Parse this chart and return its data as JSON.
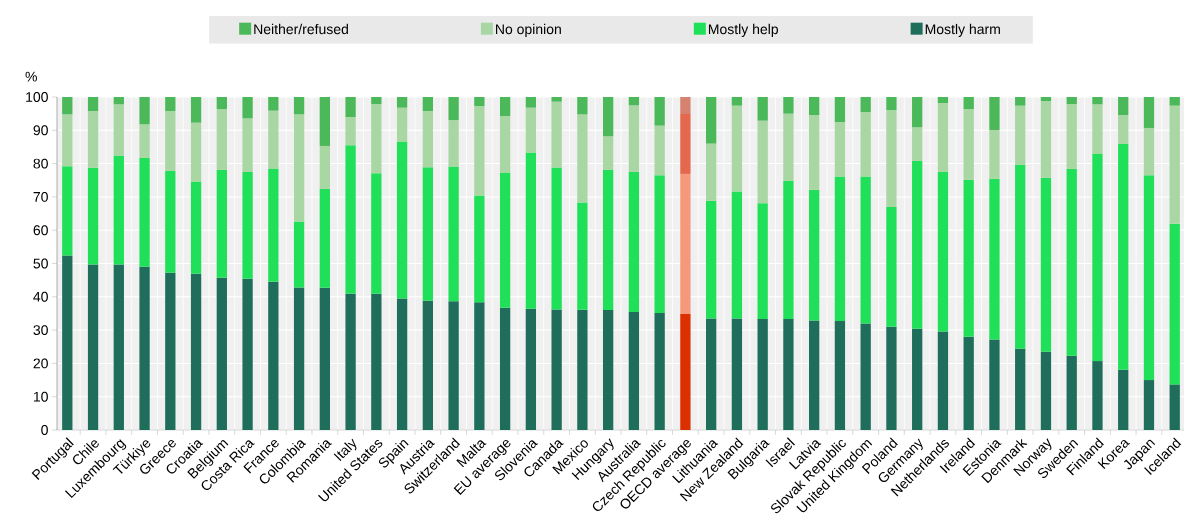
{
  "chart_data": {
    "type": "bar",
    "stacked": true,
    "ylabel": "%",
    "ylim": [
      0,
      100
    ],
    "yticks": [
      0,
      10,
      20,
      30,
      40,
      50,
      60,
      70,
      80,
      90,
      100
    ],
    "grid": true,
    "legend": "top",
    "categories": [
      "Portugal",
      "Chile",
      "Luxembourg",
      "Türkiye",
      "Greece",
      "Croatia",
      "Belgium",
      "Costa Rica",
      "France",
      "Colombia",
      "Romania",
      "Italy",
      "United States",
      "Spain",
      "Austria",
      "Switzerland",
      "Malta",
      "EU average",
      "Slovenia",
      "Canada",
      "Mexico",
      "Hungary",
      "Australia",
      "Czech Republic",
      "OECD average",
      "Lithuania",
      "New Zealand",
      "Bulgaria",
      "Israel",
      "Latvia",
      "Slovak Republic",
      "United Kingdom",
      "Poland",
      "Germany",
      "Netherlands",
      "Ireland",
      "Estonia",
      "Denmark",
      "Norway",
      "Sweden",
      "Finland",
      "Korea",
      "Japan",
      "Iceland"
    ],
    "series": [
      {
        "name": "Mostly harm",
        "color": "#1f6e5c",
        "colors": [
          "#1f6e5c",
          "#1f6e5c",
          "#1f6e5c",
          "#1f6e5c",
          "#1f6e5c",
          "#1f6e5c",
          "#1f6e5c",
          "#1f6e5c",
          "#1f6e5c",
          "#1f6e5c",
          "#1f6e5c",
          "#1f6e5c",
          "#1f6e5c",
          "#1f6e5c",
          "#1f6e5c",
          "#1f6e5c",
          "#1f6e5c",
          "#1f6e5c",
          "#1f6e5c",
          "#1f6e5c",
          "#1f6e5c",
          "#1f6e5c",
          "#1f6e5c",
          "#1f6e5c",
          "#dd3000",
          "#1f6e5c",
          "#1f6e5c",
          "#1f6e5c",
          "#1f6e5c",
          "#1f6e5c",
          "#1f6e5c",
          "#1f6e5c",
          "#1f6e5c",
          "#1f6e5c",
          "#1f6e5c",
          "#1f6e5c",
          "#1f6e5c",
          "#1f6e5c",
          "#1f6e5c",
          "#1f6e5c",
          "#1f6e5c",
          "#1f6e5c",
          "#1f6e5c",
          "#1f6e5c"
        ],
        "values": [
          52.4,
          49.7,
          49.7,
          49.0,
          47.2,
          46.9,
          45.7,
          45.4,
          44.5,
          42.8,
          42.7,
          40.9,
          40.9,
          39.5,
          38.8,
          38.7,
          38.4,
          36.7,
          36.4,
          36.2,
          36.1,
          36.0,
          35.4,
          35.1,
          34.8,
          33.5,
          33.5,
          33.3,
          33.3,
          32.9,
          32.7,
          32.0,
          31.0,
          30.4,
          29.6,
          28.0,
          27.2,
          24.4,
          23.5,
          22.3,
          20.7,
          18.1,
          15.0,
          13.7
        ]
      },
      {
        "name": "Mostly help",
        "color": "#20e05a",
        "colors": [
          "#20e05a",
          "#20e05a",
          "#20e05a",
          "#20e05a",
          "#20e05a",
          "#20e05a",
          "#20e05a",
          "#20e05a",
          "#20e05a",
          "#20e05a",
          "#20e05a",
          "#20e05a",
          "#20e05a",
          "#20e05a",
          "#20e05a",
          "#20e05a",
          "#20e05a",
          "#20e05a",
          "#20e05a",
          "#20e05a",
          "#20e05a",
          "#20e05a",
          "#20e05a",
          "#20e05a",
          "#f5997c",
          "#20e05a",
          "#20e05a",
          "#20e05a",
          "#20e05a",
          "#20e05a",
          "#20e05a",
          "#20e05a",
          "#20e05a",
          "#20e05a",
          "#20e05a",
          "#20e05a",
          "#20e05a",
          "#20e05a",
          "#20e05a",
          "#20e05a",
          "#20e05a",
          "#20e05a",
          "#20e05a",
          "#20e05a"
        ],
        "values": [
          26.8,
          29.0,
          32.7,
          32.7,
          30.6,
          27.7,
          32.4,
          32.1,
          34.0,
          19.8,
          29.7,
          44.6,
          36.2,
          47.1,
          40.1,
          40.4,
          32.0,
          40.6,
          46.9,
          42.6,
          32.2,
          42.1,
          42.1,
          41.4,
          42.1,
          35.3,
          38.1,
          34.8,
          41.5,
          39.2,
          43.4,
          44.1,
          36.0,
          50.4,
          47.9,
          47.1,
          48.2,
          55.2,
          52.2,
          56.1,
          62.3,
          67.8,
          61.5,
          48.2
        ]
      },
      {
        "name": "No opinion",
        "color": "#a8d7a4",
        "colors": [
          "#a8d7a4",
          "#a8d7a4",
          "#a8d7a4",
          "#a8d7a4",
          "#a8d7a4",
          "#a8d7a4",
          "#a8d7a4",
          "#a8d7a4",
          "#a8d7a4",
          "#a8d7a4",
          "#a8d7a4",
          "#a8d7a4",
          "#a8d7a4",
          "#a8d7a4",
          "#a8d7a4",
          "#a8d7a4",
          "#a8d7a4",
          "#a8d7a4",
          "#a8d7a4",
          "#a8d7a4",
          "#a8d7a4",
          "#a8d7a4",
          "#a8d7a4",
          "#a8d7a4",
          "#e4684e",
          "#a8d7a4",
          "#a8d7a4",
          "#a8d7a4",
          "#a8d7a4",
          "#a8d7a4",
          "#a8d7a4",
          "#a8d7a4",
          "#a8d7a4",
          "#a8d7a4",
          "#a8d7a4",
          "#a8d7a4",
          "#a8d7a4",
          "#a8d7a4",
          "#a8d7a4",
          "#a8d7a4",
          "#a8d7a4",
          "#a8d7a4",
          "#a8d7a4",
          "#a8d7a4"
        ],
        "values": [
          15.6,
          17.1,
          15.4,
          10.1,
          18.0,
          17.7,
          18.3,
          16.1,
          17.4,
          32.2,
          12.9,
          8.5,
          20.8,
          10.2,
          16.9,
          14.0,
          26.9,
          17.0,
          13.5,
          19.8,
          26.5,
          10.1,
          20.0,
          14.9,
          18.0,
          17.2,
          25.8,
          24.8,
          20.2,
          22.5,
          16.4,
          19.4,
          29.1,
          10.1,
          20.7,
          21.3,
          14.7,
          17.8,
          23.1,
          19.5,
          14.8,
          8.7,
          14.2,
          35.5
        ]
      },
      {
        "name": "Neither/refused",
        "color": "#4bb85a",
        "colors": [
          "#4bb85a",
          "#4bb85a",
          "#4bb85a",
          "#4bb85a",
          "#4bb85a",
          "#4bb85a",
          "#4bb85a",
          "#4bb85a",
          "#4bb85a",
          "#4bb85a",
          "#4bb85a",
          "#4bb85a",
          "#4bb85a",
          "#4bb85a",
          "#4bb85a",
          "#4bb85a",
          "#4bb85a",
          "#4bb85a",
          "#4bb85a",
          "#4bb85a",
          "#4bb85a",
          "#4bb85a",
          "#4bb85a",
          "#4bb85a",
          "#d6826f",
          "#4bb85a",
          "#4bb85a",
          "#4bb85a",
          "#4bb85a",
          "#4bb85a",
          "#4bb85a",
          "#4bb85a",
          "#4bb85a",
          "#4bb85a",
          "#4bb85a",
          "#4bb85a",
          "#4bb85a",
          "#4bb85a",
          "#4bb85a",
          "#4bb85a",
          "#4bb85a",
          "#4bb85a",
          "#4bb85a",
          "#4bb85a"
        ],
        "values": [
          5.2,
          4.2,
          2.2,
          8.2,
          4.2,
          7.7,
          3.6,
          6.4,
          4.1,
          5.2,
          14.7,
          6.0,
          2.1,
          3.2,
          4.2,
          6.9,
          2.7,
          5.7,
          3.2,
          1.4,
          5.2,
          11.8,
          2.5,
          8.6,
          5.1,
          14.0,
          2.6,
          7.1,
          5.0,
          5.4,
          7.5,
          4.5,
          3.9,
          9.1,
          1.8,
          3.6,
          9.9,
          2.6,
          1.2,
          2.1,
          2.2,
          5.4,
          9.3,
          2.6
        ]
      }
    ]
  }
}
